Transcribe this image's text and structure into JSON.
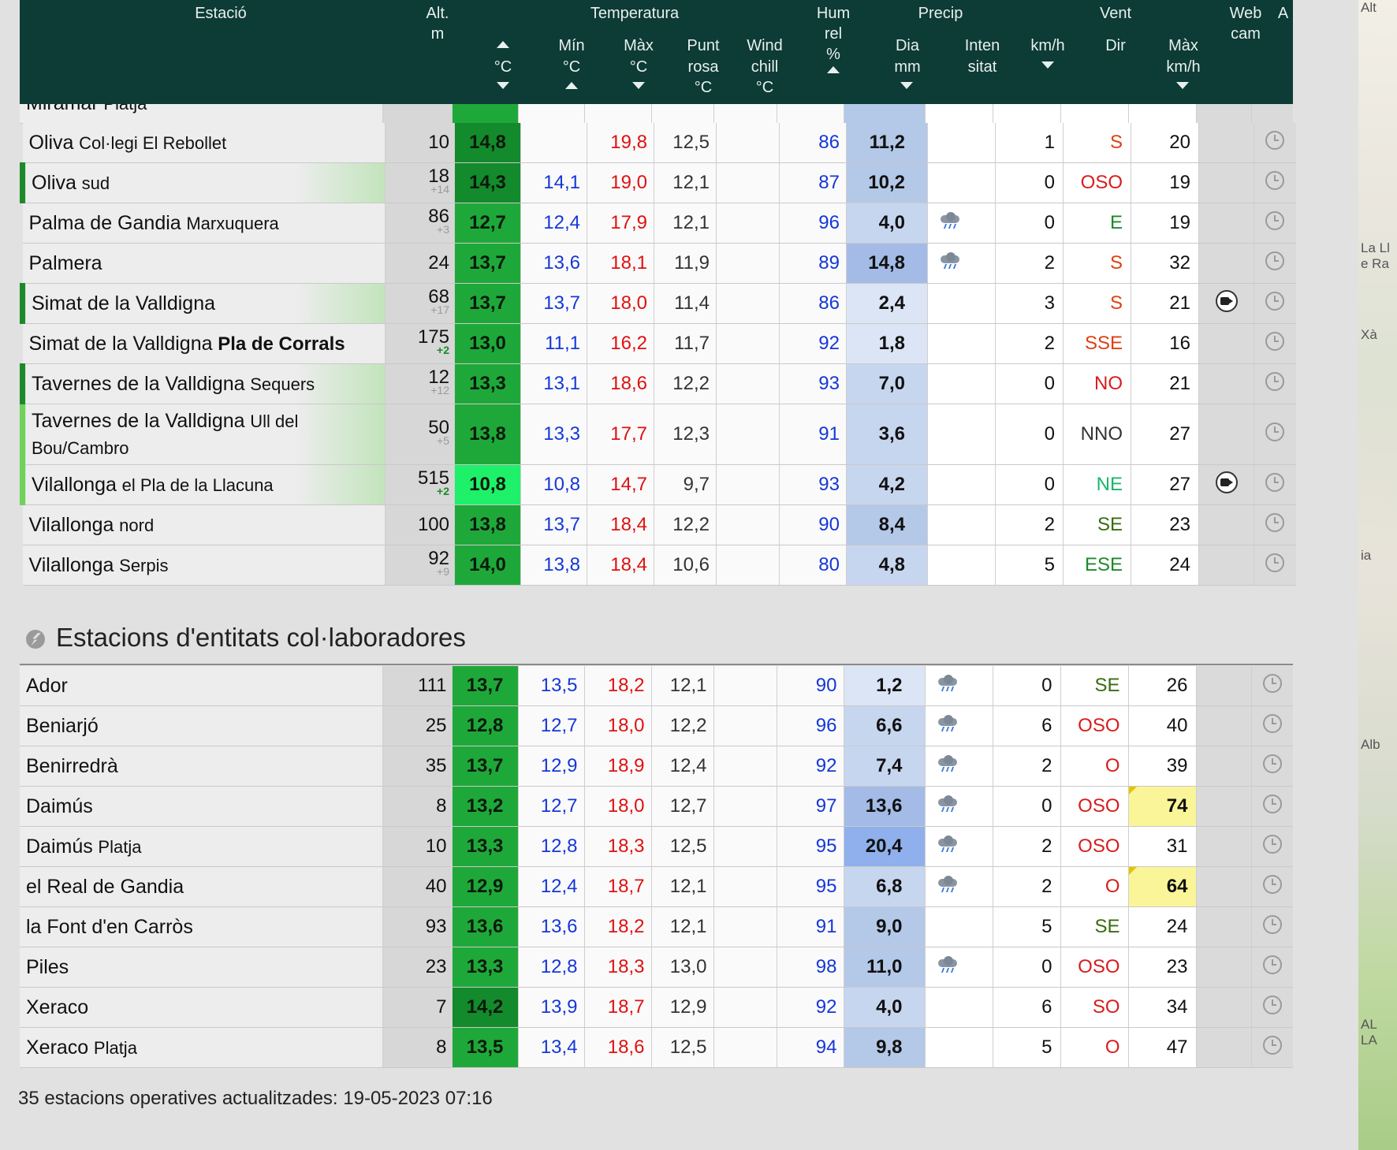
{
  "header": {
    "estacio": "Estació",
    "alt": "Alt.",
    "alt_unit": "m",
    "temperatura": "Temperatura",
    "temp_unit": "°C",
    "min": "Mín",
    "min_unit": "°C",
    "max": "Màx",
    "max_unit": "°C",
    "punt": "Punt",
    "rosa": "rosa",
    "rosa_unit": "°C",
    "wind": "Wind",
    "chill": "chill",
    "chill_unit": "°C",
    "hum": "Hum",
    "rel": "rel",
    "hum_unit": "%",
    "precip": "Precip",
    "dia": "Dia",
    "dia_unit": "mm",
    "inten": "Inten",
    "sitat": "sitat",
    "vent": "Vent",
    "kmh": "km/h",
    "dir": "Dir",
    "max_vent": "Màx",
    "max_vent_unit": "km/h",
    "web": "Web",
    "cam": "cam",
    "a": "A"
  },
  "partial_row": {
    "name": "Miramar",
    "sub": "Platja"
  },
  "stations": [
    {
      "name": "Oliva",
      "sub": "Col·legi El Rebollet",
      "alt": "10",
      "alt_diff": "",
      "temp": "14,8",
      "min": "",
      "max": "19,8",
      "dew": "12,5",
      "wc": "",
      "hum": "86",
      "prec": "11,2",
      "int": "",
      "kmh": "1",
      "dir": "S",
      "maxw": "20",
      "cam": ""
    },
    {
      "name": "Oliva",
      "sub": "sud",
      "alt": "18",
      "alt_diff": "+14",
      "temp": "14,3",
      "min": "14,1",
      "max": "19,0",
      "dew": "12,1",
      "wc": "",
      "hum": "87",
      "prec": "10,2",
      "int": "",
      "kmh": "0",
      "dir": "OSO",
      "maxw": "19",
      "cam": ""
    },
    {
      "name": "Palma de Gandia",
      "sub": "Marxuquera",
      "alt": "86",
      "alt_diff": "+3",
      "temp": "12,7",
      "min": "12,4",
      "max": "17,9",
      "dew": "12,1",
      "wc": "",
      "hum": "96",
      "prec": "4,0",
      "int": "rain",
      "kmh": "0",
      "dir": "E",
      "maxw": "19",
      "cam": ""
    },
    {
      "name": "Palmera",
      "sub": "",
      "alt": "24",
      "alt_diff": "",
      "temp": "13,7",
      "min": "13,6",
      "max": "18,1",
      "dew": "11,9",
      "wc": "",
      "hum": "89",
      "prec": "14,8",
      "int": "rain",
      "kmh": "2",
      "dir": "S",
      "maxw": "32",
      "cam": ""
    },
    {
      "name": "Simat de la Valldigna",
      "sub": "",
      "alt": "68",
      "alt_diff": "+17",
      "temp": "13,7",
      "min": "13,7",
      "max": "18,0",
      "dew": "11,4",
      "wc": "",
      "hum": "86",
      "prec": "2,4",
      "int": "",
      "kmh": "3",
      "dir": "S",
      "maxw": "21",
      "cam": "yes"
    },
    {
      "name": "Simat de la Valldigna",
      "sub": "Pla de Corrals",
      "alt": "175",
      "alt_diff": "+2",
      "temp": "13,0",
      "min": "11,1",
      "max": "16,2",
      "dew": "11,7",
      "wc": "",
      "hum": "92",
      "prec": "1,8",
      "int": "",
      "kmh": "2",
      "dir": "SSE",
      "maxw": "16",
      "cam": ""
    },
    {
      "name": "Tavernes de la Valldigna",
      "sub": "Sequers",
      "alt": "12",
      "alt_diff": "+12",
      "temp": "13,3",
      "min": "13,1",
      "max": "18,6",
      "dew": "12,2",
      "wc": "",
      "hum": "93",
      "prec": "7,0",
      "int": "",
      "kmh": "0",
      "dir": "NO",
      "maxw": "21",
      "cam": ""
    },
    {
      "name": "Tavernes de la Valldigna",
      "sub": "Ull del Bou/Cambro",
      "alt": "50",
      "alt_diff": "+5",
      "temp": "13,8",
      "min": "13,3",
      "max": "17,7",
      "dew": "12,3",
      "wc": "",
      "hum": "91",
      "prec": "3,6",
      "int": "",
      "kmh": "0",
      "dir": "NNO",
      "maxw": "27",
      "cam": ""
    },
    {
      "name": "Vilallonga",
      "sub": "el Pla de la Llacuna",
      "alt": "515",
      "alt_diff": "+2",
      "temp": "10,8",
      "min": "10,8",
      "max": "14,7",
      "dew": "9,7",
      "wc": "",
      "hum": "93",
      "prec": "4,2",
      "int": "",
      "kmh": "0",
      "dir": "NE",
      "maxw": "27",
      "cam": "yes"
    },
    {
      "name": "Vilallonga",
      "sub": "nord",
      "alt": "100",
      "alt_diff": "",
      "temp": "13,8",
      "min": "13,7",
      "max": "18,4",
      "dew": "12,2",
      "wc": "",
      "hum": "90",
      "prec": "8,4",
      "int": "",
      "kmh": "2",
      "dir": "SE",
      "maxw": "23",
      "cam": ""
    },
    {
      "name": "Vilallonga",
      "sub": "Serpis",
      "alt": "92",
      "alt_diff": "+9",
      "temp": "14,0",
      "min": "13,8",
      "max": "18,4",
      "dew": "10,6",
      "wc": "",
      "hum": "80",
      "prec": "4,8",
      "int": "",
      "kmh": "5",
      "dir": "ESE",
      "maxw": "24",
      "cam": ""
    }
  ],
  "section": {
    "title": "Estacions d'entitats col·laboradores"
  },
  "collab_stations": [
    {
      "name": "Ador",
      "sub": "",
      "alt": "111",
      "temp": "13,7",
      "min": "13,5",
      "max": "18,2",
      "dew": "12,1",
      "wc": "",
      "hum": "90",
      "prec": "1,2",
      "int": "rain",
      "kmh": "0",
      "dir": "SE",
      "maxw": "26"
    },
    {
      "name": "Beniarjó",
      "sub": "",
      "alt": "25",
      "temp": "12,8",
      "min": "12,7",
      "max": "18,0",
      "dew": "12,2",
      "wc": "",
      "hum": "96",
      "prec": "6,6",
      "int": "rain",
      "kmh": "6",
      "dir": "OSO",
      "maxw": "40"
    },
    {
      "name": "Benirredrà",
      "sub": "",
      "alt": "35",
      "temp": "13,7",
      "min": "12,9",
      "max": "18,9",
      "dew": "12,4",
      "wc": "",
      "hum": "92",
      "prec": "7,4",
      "int": "rain",
      "kmh": "2",
      "dir": "O",
      "maxw": "39"
    },
    {
      "name": "Daimús",
      "sub": "",
      "alt": "8",
      "temp": "13,2",
      "min": "12,7",
      "max": "18,0",
      "dew": "12,7",
      "wc": "",
      "hum": "97",
      "prec": "13,6",
      "int": "rain",
      "kmh": "0",
      "dir": "OSO",
      "maxw": "74"
    },
    {
      "name": "Daimús",
      "sub": "Platja",
      "alt": "10",
      "temp": "13,3",
      "min": "12,8",
      "max": "18,3",
      "dew": "12,5",
      "wc": "",
      "hum": "95",
      "prec": "20,4",
      "int": "rain",
      "kmh": "2",
      "dir": "OSO",
      "maxw": "31"
    },
    {
      "name": "el Real de Gandia",
      "sub": "",
      "alt": "40",
      "temp": "12,9",
      "min": "12,4",
      "max": "18,7",
      "dew": "12,1",
      "wc": "",
      "hum": "95",
      "prec": "6,8",
      "int": "rain",
      "kmh": "2",
      "dir": "O",
      "maxw": "64"
    },
    {
      "name": "la Font d'en Carròs",
      "sub": "",
      "alt": "93",
      "temp": "13,6",
      "min": "13,6",
      "max": "18,2",
      "dew": "12,1",
      "wc": "",
      "hum": "91",
      "prec": "9,0",
      "int": "",
      "kmh": "5",
      "dir": "SE",
      "maxw": "24"
    },
    {
      "name": "Piles",
      "sub": "",
      "alt": "23",
      "temp": "13,3",
      "min": "12,8",
      "max": "18,3",
      "dew": "13,0",
      "wc": "",
      "hum": "98",
      "prec": "11,0",
      "int": "rain",
      "kmh": "0",
      "dir": "OSO",
      "maxw": "23"
    },
    {
      "name": "Xeraco",
      "sub": "",
      "alt": "7",
      "temp": "14,2",
      "min": "13,9",
      "max": "18,7",
      "dew": "12,9",
      "wc": "",
      "hum": "92",
      "prec": "4,0",
      "int": "",
      "kmh": "6",
      "dir": "SO",
      "maxw": "34"
    },
    {
      "name": "Xeraco",
      "sub": "Platja",
      "alt": "8",
      "temp": "13,5",
      "min": "13,4",
      "max": "18,6",
      "dew": "12,5",
      "wc": "",
      "hum": "94",
      "prec": "9,8",
      "int": "",
      "kmh": "5",
      "dir": "O",
      "maxw": "47"
    }
  ],
  "footer": {
    "count": "35",
    "text": "estacions operatives actualitzades:",
    "updated": "19-05-2023 07:16"
  },
  "map_labels": [
    "Alt",
    "La Ll",
    "e Ra",
    "Xà",
    "ia",
    "Alb",
    "AL",
    "LA"
  ],
  "colors": {
    "header_bg": "#0d3b36",
    "temp_cell": "#1fa83a",
    "min_text": "#1537d8",
    "max_text": "#e01010",
    "precip_cell": "#c7d6ef",
    "gust_highlight": "#fbf59a"
  },
  "icons": {
    "rain": "rain-cloud-icon",
    "clock": "clock-icon",
    "cam": "webcam-icon",
    "section": "lightning-icon"
  }
}
